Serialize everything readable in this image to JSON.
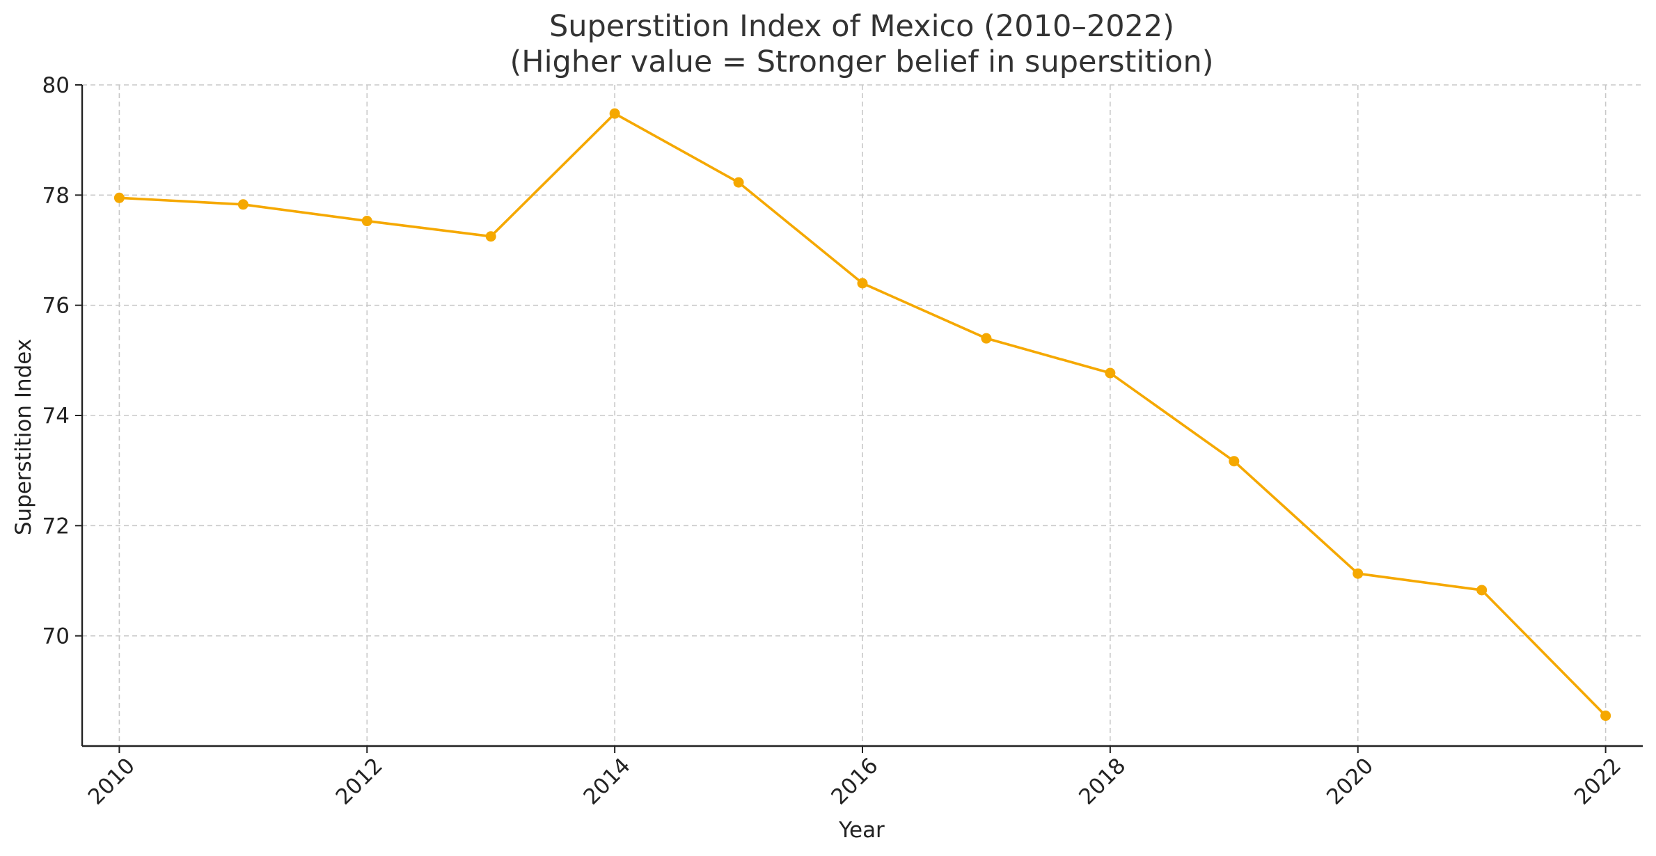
{
  "chart_data": {
    "type": "line",
    "title": "Superstition Index of Mexico (2010–2022)",
    "subtitle": "(Higher value = Stronger belief in superstition)",
    "xlabel": "Year",
    "ylabel": "Superstition Index",
    "x": [
      2010,
      2011,
      2012,
      2013,
      2014,
      2015,
      2016,
      2017,
      2018,
      2019,
      2020,
      2021,
      2022
    ],
    "series": [
      {
        "values": [
          77.95,
          77.83,
          77.53,
          77.25,
          79.48,
          78.23,
          76.4,
          75.4,
          74.77,
          73.17,
          71.13,
          70.83,
          68.55
        ],
        "color": "#f5a800",
        "marker": "circle"
      }
    ],
    "xlim": [
      2009.7,
      2022.3
    ],
    "ylim": [
      68.0,
      80.0
    ],
    "xticks": [
      "2010",
      "2012",
      "2014",
      "2016",
      "2018",
      "2020",
      "2022"
    ],
    "yticks": [
      "70",
      "72",
      "74",
      "76",
      "78",
      "80"
    ],
    "grid": true,
    "grid_style": "dashed",
    "legend": "none"
  }
}
